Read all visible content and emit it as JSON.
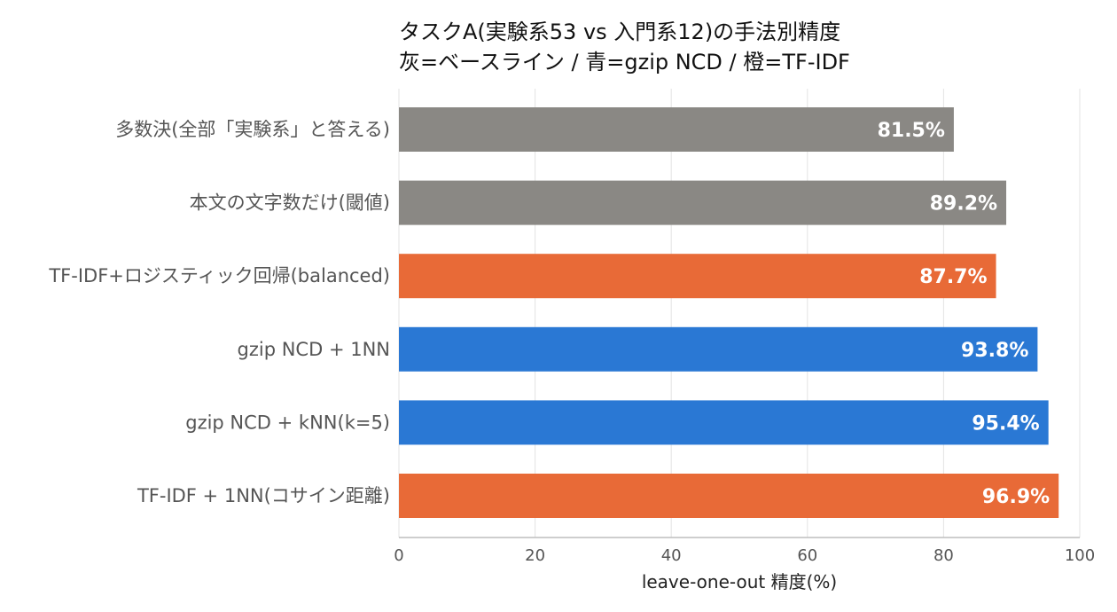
{
  "chart_data": {
    "type": "bar",
    "orientation": "horizontal",
    "title": [
      "タスクA(実験系53 vs 入門系12)の手法別精度",
      "灰=ベースライン / 青=gzip NCD / 橙=TF-IDF"
    ],
    "xlabel": "leave-one-out 精度(%)",
    "ylabel": "",
    "xlim": [
      0,
      100
    ],
    "xticks": [
      0,
      20,
      40,
      60,
      80,
      100
    ],
    "grid": true,
    "categories": [
      "多数決(全部「実験系」と答える)",
      "本文の文字数だけ(閾値)",
      "TF-IDF+ロジスティック回帰(balanced)",
      "gzip NCD + 1NN",
      "gzip NCD + kNN(k=5)",
      "TF-IDF + 1NN(コサイン距離)"
    ],
    "values": [
      81.5,
      89.2,
      87.7,
      93.8,
      95.4,
      96.9
    ],
    "value_labels": [
      "81.5%",
      "89.2%",
      "87.7%",
      "93.8%",
      "95.4%",
      "96.9%"
    ],
    "groups": [
      "baseline",
      "baseline",
      "tfidf",
      "gzip",
      "gzip",
      "tfidf"
    ],
    "colors": {
      "baseline": "#8a8884",
      "gzip": "#2a78d4",
      "tfidf": "#e86a37"
    }
  }
}
